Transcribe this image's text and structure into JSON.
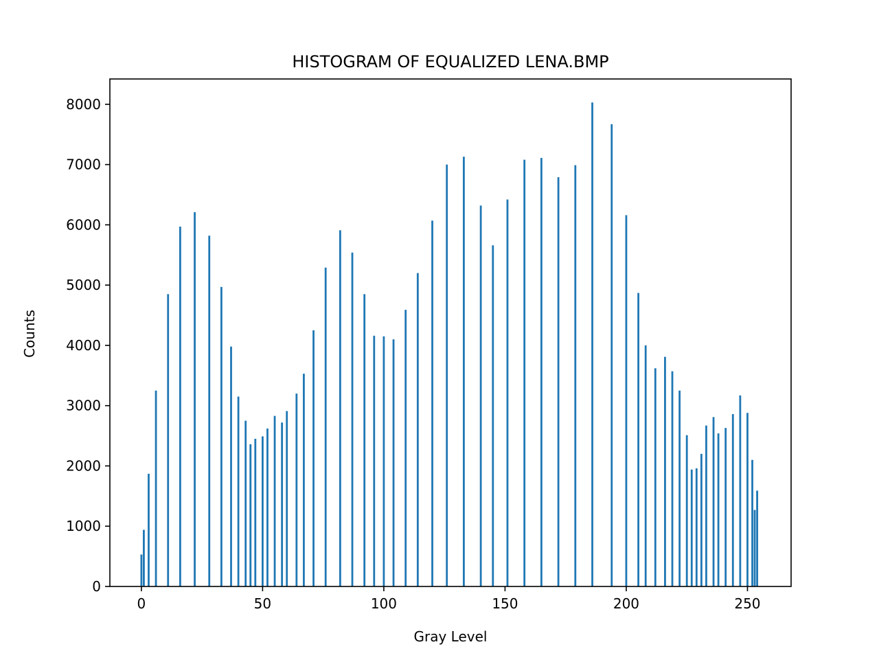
{
  "chart_data": {
    "type": "bar",
    "title": "HISTOGRAM OF EQUALIZED LENA.BMP",
    "xlabel": "Gray Level",
    "ylabel": "Counts",
    "xlim": [
      -13,
      268
    ],
    "ylim": [
      0,
      8420
    ],
    "xticks": [
      0,
      50,
      100,
      150,
      200,
      250
    ],
    "yticks": [
      0,
      1000,
      2000,
      3000,
      4000,
      5000,
      6000,
      7000,
      8000
    ],
    "grid": false,
    "legend": "none",
    "bar_color": "#1f77b4",
    "x": [
      0,
      1,
      3,
      6,
      11,
      16,
      22,
      28,
      33,
      37,
      40,
      43,
      45,
      47,
      50,
      52,
      55,
      58,
      60,
      64,
      67,
      71,
      76,
      82,
      87,
      92,
      96,
      100,
      104,
      109,
      114,
      120,
      126,
      133,
      140,
      145,
      151,
      158,
      165,
      172,
      179,
      186,
      194,
      200,
      205,
      208,
      212,
      216,
      219,
      222,
      225,
      227,
      229,
      231,
      233,
      236,
      238,
      241,
      244,
      247,
      250,
      252,
      253,
      254
    ],
    "values": [
      530,
      940,
      1870,
      3250,
      4850,
      5970,
      6210,
      5820,
      4970,
      3980,
      3150,
      2750,
      2360,
      2450,
      2490,
      2620,
      2830,
      2720,
      2910,
      3200,
      3530,
      4250,
      5290,
      5910,
      5540,
      4850,
      4160,
      4150,
      4100,
      4590,
      5200,
      6070,
      7000,
      7130,
      6320,
      5660,
      6420,
      7080,
      7110,
      6790,
      6990,
      8030,
      7670,
      6160,
      4870,
      4000,
      3620,
      3810,
      3570,
      3250,
      2510,
      1940,
      1960,
      2200,
      2670,
      2810,
      2540,
      2630,
      2860,
      3170,
      2880,
      2100,
      1270,
      1590
    ]
  }
}
